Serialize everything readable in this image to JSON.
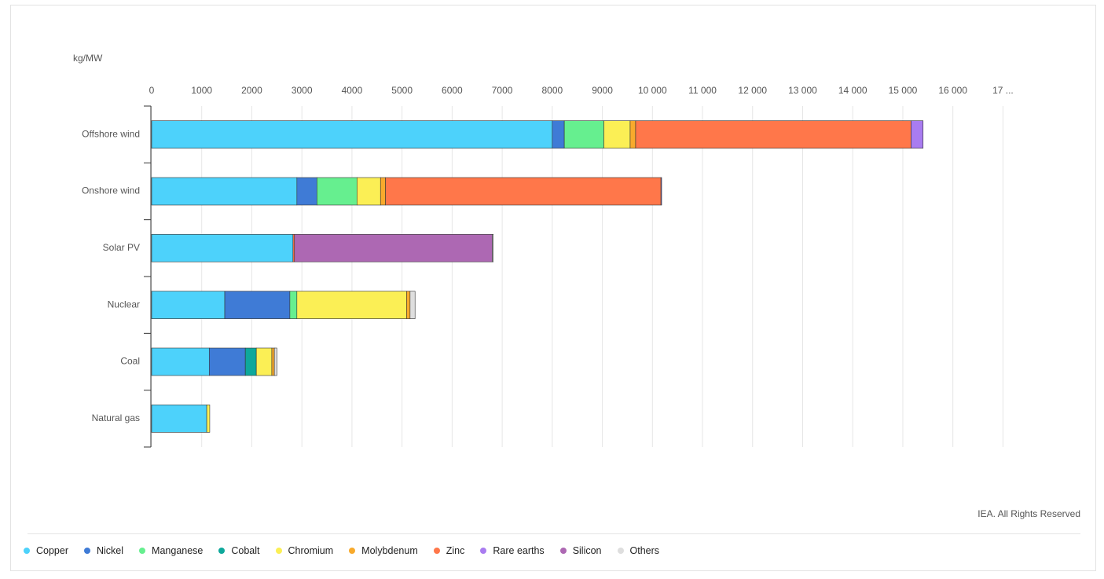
{
  "chart_data": {
    "type": "stacked_bar_horizontal",
    "unit": "kg/MW",
    "source": "IEA. All Rights Reserved",
    "categories": [
      "Offshore wind",
      "Onshore wind",
      "Solar PV",
      "Nuclear",
      "Coal",
      "Natural gas"
    ],
    "series": [
      {
        "name": "Copper",
        "color": "#4dd2fb",
        "values": [
          8000,
          2900,
          2822,
          1460,
          1150,
          1100
        ]
      },
      {
        "name": "Nickel",
        "color": "#3f7bd6",
        "values": [
          240,
          400,
          0,
          1300,
          720,
          0
        ]
      },
      {
        "name": "Manganese",
        "color": "#66ef8f",
        "values": [
          790,
          800,
          0,
          140,
          0,
          0
        ]
      },
      {
        "name": "Cobalt",
        "color": "#0ea89b",
        "values": [
          0,
          0,
          0,
          0,
          220,
          0
        ]
      },
      {
        "name": "Chromium",
        "color": "#fbef55",
        "values": [
          525,
          470,
          0,
          2190,
          310,
          60
        ]
      },
      {
        "name": "Molybdenum",
        "color": "#f8aa2c",
        "values": [
          110,
          100,
          0,
          70,
          50,
          0
        ]
      },
      {
        "name": "Zinc",
        "color": "#ff774a",
        "values": [
          5500,
          5500,
          30,
          0,
          0,
          0
        ]
      },
      {
        "name": "Rare earths",
        "color": "#a97cf0",
        "values": [
          240,
          14,
          0,
          0,
          0,
          0
        ]
      },
      {
        "name": "Silicon",
        "color": "#ad68b3",
        "values": [
          0,
          0,
          3950,
          0,
          0,
          0
        ]
      },
      {
        "name": "Others",
        "color": "#dedede",
        "values": [
          0,
          0,
          20,
          100,
          50,
          0
        ]
      }
    ],
    "xlim": [
      0,
      17000
    ],
    "xticks": [
      0,
      1000,
      2000,
      3000,
      4000,
      5000,
      6000,
      7000,
      8000,
      9000,
      {
        "value": 10000,
        "label": "10 000"
      },
      {
        "value": 11000,
        "label": "11 000"
      },
      {
        "value": 12000,
        "label": "12 000"
      },
      {
        "value": 13000,
        "label": "13 000"
      },
      {
        "value": 14000,
        "label": "14 000"
      },
      {
        "value": 15000,
        "label": "15 000"
      },
      {
        "value": 16000,
        "label": "16 000"
      },
      {
        "value": 17000,
        "label": "17 ..."
      }
    ],
    "grid": true
  }
}
